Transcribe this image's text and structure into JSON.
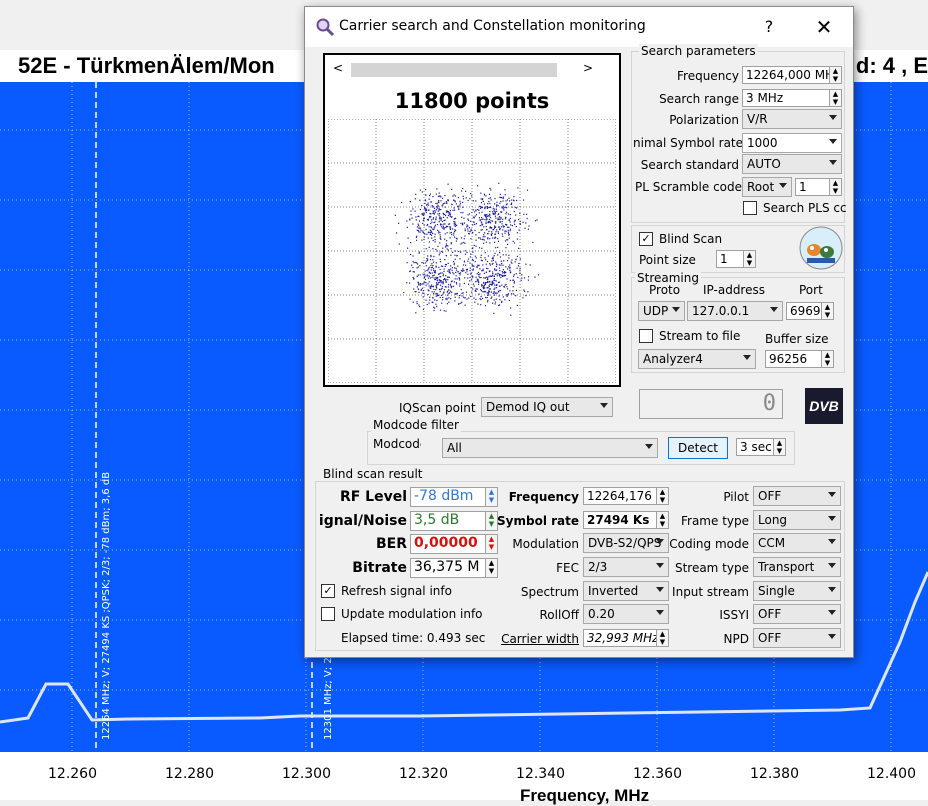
{
  "background": {
    "title_left": "52E - TürkmenÄlem/Mon",
    "title_right": "d: 4 , E",
    "marker_label_1": "12264 MHz; V; 27494 KS ;QPSK; 2/3; -78 dBm; 3,6 dB",
    "marker_label_2": "12301 MHz; V; 2",
    "x_ticks": [
      "12.260",
      "12.280",
      "12.300",
      "12.320",
      "12.340",
      "12.360",
      "12.380",
      "12.400"
    ],
    "x_axis_title": "Frequency, MHz",
    "colors": {
      "plot_bg": "#0a5bff",
      "trace": "#dce6f5"
    }
  },
  "dialog": {
    "title": "Carrier search and Constellation monitoring",
    "help_label": "?",
    "close_label": "✕",
    "app_icon": "magnifier-icon",
    "constellation": {
      "points_label": "11800 points"
    },
    "search_params": {
      "title": "Search parameters",
      "frequency_label": "Frequency",
      "frequency_value": "12264,000 MH",
      "search_range_label": "Search range",
      "search_range_value": "3 MHz",
      "polarization_label": "Polarization",
      "polarization_value": "V/R",
      "min_symbol_rate_label": "nimal Symbol rate",
      "min_symbol_rate_value": "1000",
      "search_standard_label": "Search standard",
      "search_standard_value": "AUTO",
      "pl_scramble_label": "PL Scramble code",
      "pl_scramble_mode": "Root",
      "pl_scramble_value": "1",
      "search_pls_label": "Search PLS cc"
    },
    "blind_scan_label": "Blind Scan",
    "point_size_label": "Point size",
    "point_size_value": "1",
    "streaming": {
      "title": "Streaming",
      "proto_label": "Proto",
      "ip_label": "IP-address",
      "port_label": "Port",
      "proto_value": "UDP",
      "ip_value": "127.0.0.1",
      "port_value": "6969",
      "stream_to_file_label": "Stream to file",
      "buffer_size_label": "Buffer size",
      "analyzer_value": "Analyzer4",
      "buffer_size_value": "96256"
    },
    "lcd_value": "0",
    "dvb_logo": "DVB",
    "iqscan_label": "IQScan point",
    "iqscan_value": "Demod IQ out",
    "modcode_filter": {
      "title": "Modcode filter",
      "modcode_label": "Modcode",
      "modcode_value": "All",
      "detect_label": "Detect",
      "seconds_value": "3 sec"
    },
    "result": {
      "title": "Blind scan result",
      "rf_level_label": "RF Level",
      "rf_level_value": "-78 dBm",
      "snr_label": "ignal/Noise",
      "snr_value": "3,5 dB",
      "ber_label": "BER",
      "ber_value": "0,00000",
      "bitrate_label": "Bitrate",
      "bitrate_value": "36,375 M",
      "refresh_label": "Refresh signal info",
      "update_mod_label": "Update modulation info",
      "elapsed_label": "Elapsed time: 0.493 sec",
      "frequency_label": "Frequency",
      "frequency_value": "12264,176",
      "symbol_rate_label": "Symbol rate",
      "symbol_rate_value": "27494 Ks",
      "modulation_label": "Modulation",
      "modulation_value": "DVB-S2/QPS",
      "fec_label": "FEC",
      "fec_value": "2/3",
      "spectrum_label": "Spectrum",
      "spectrum_value": "Inverted",
      "rolloff_label": "RollOff",
      "rolloff_value": "0.20",
      "carrier_width_label": "Carrier width",
      "carrier_width_value": "32,993 MHz",
      "pilot_label": "Pilot",
      "pilot_value": "OFF",
      "frame_type_label": "Frame type",
      "frame_type_value": "Long",
      "coding_mode_label": "Coding mode",
      "coding_mode_value": "CCM",
      "stream_type_label": "Stream type",
      "stream_type_value": "Transport",
      "input_stream_label": "Input stream",
      "input_stream_value": "Single",
      "issyi_label": "ISSYI",
      "issyi_value": "OFF",
      "npd_label": "NPD",
      "npd_value": "OFF"
    }
  }
}
